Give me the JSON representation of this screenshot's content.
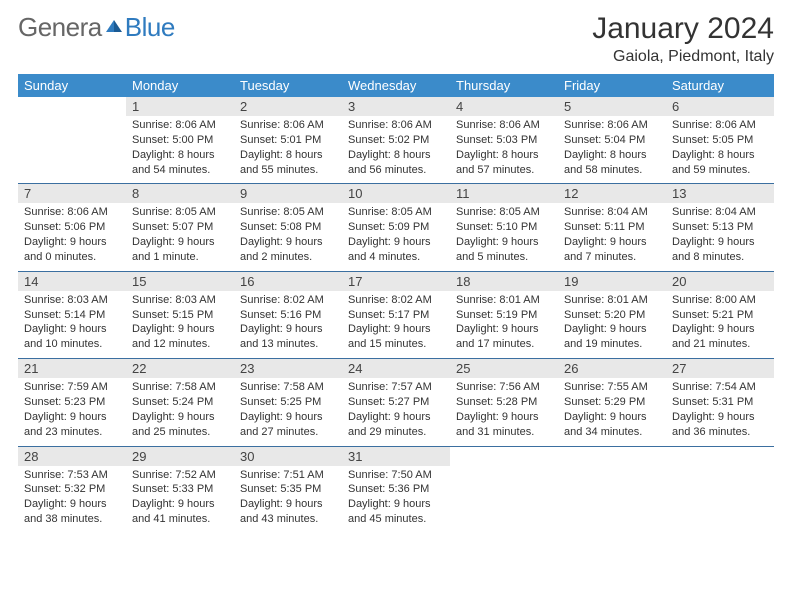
{
  "logo": {
    "text_a": "Genera",
    "text_b": "Blue"
  },
  "title": "January 2024",
  "location": "Gaiola, Piedmont, Italy",
  "day_headers": [
    "Sunday",
    "Monday",
    "Tuesday",
    "Wednesday",
    "Thursday",
    "Friday",
    "Saturday"
  ],
  "colors": {
    "header_bg": "#3b8bca",
    "header_fg": "#ffffff",
    "daynum_bg": "#e8e8e8",
    "rule": "#3b6fa0"
  },
  "weeks": [
    [
      {
        "n": "",
        "lines": []
      },
      {
        "n": "1",
        "lines": [
          "Sunrise: 8:06 AM",
          "Sunset: 5:00 PM",
          "Daylight: 8 hours",
          "and 54 minutes."
        ]
      },
      {
        "n": "2",
        "lines": [
          "Sunrise: 8:06 AM",
          "Sunset: 5:01 PM",
          "Daylight: 8 hours",
          "and 55 minutes."
        ]
      },
      {
        "n": "3",
        "lines": [
          "Sunrise: 8:06 AM",
          "Sunset: 5:02 PM",
          "Daylight: 8 hours",
          "and 56 minutes."
        ]
      },
      {
        "n": "4",
        "lines": [
          "Sunrise: 8:06 AM",
          "Sunset: 5:03 PM",
          "Daylight: 8 hours",
          "and 57 minutes."
        ]
      },
      {
        "n": "5",
        "lines": [
          "Sunrise: 8:06 AM",
          "Sunset: 5:04 PM",
          "Daylight: 8 hours",
          "and 58 minutes."
        ]
      },
      {
        "n": "6",
        "lines": [
          "Sunrise: 8:06 AM",
          "Sunset: 5:05 PM",
          "Daylight: 8 hours",
          "and 59 minutes."
        ]
      }
    ],
    [
      {
        "n": "7",
        "lines": [
          "Sunrise: 8:06 AM",
          "Sunset: 5:06 PM",
          "Daylight: 9 hours",
          "and 0 minutes."
        ]
      },
      {
        "n": "8",
        "lines": [
          "Sunrise: 8:05 AM",
          "Sunset: 5:07 PM",
          "Daylight: 9 hours",
          "and 1 minute."
        ]
      },
      {
        "n": "9",
        "lines": [
          "Sunrise: 8:05 AM",
          "Sunset: 5:08 PM",
          "Daylight: 9 hours",
          "and 2 minutes."
        ]
      },
      {
        "n": "10",
        "lines": [
          "Sunrise: 8:05 AM",
          "Sunset: 5:09 PM",
          "Daylight: 9 hours",
          "and 4 minutes."
        ]
      },
      {
        "n": "11",
        "lines": [
          "Sunrise: 8:05 AM",
          "Sunset: 5:10 PM",
          "Daylight: 9 hours",
          "and 5 minutes."
        ]
      },
      {
        "n": "12",
        "lines": [
          "Sunrise: 8:04 AM",
          "Sunset: 5:11 PM",
          "Daylight: 9 hours",
          "and 7 minutes."
        ]
      },
      {
        "n": "13",
        "lines": [
          "Sunrise: 8:04 AM",
          "Sunset: 5:13 PM",
          "Daylight: 9 hours",
          "and 8 minutes."
        ]
      }
    ],
    [
      {
        "n": "14",
        "lines": [
          "Sunrise: 8:03 AM",
          "Sunset: 5:14 PM",
          "Daylight: 9 hours",
          "and 10 minutes."
        ]
      },
      {
        "n": "15",
        "lines": [
          "Sunrise: 8:03 AM",
          "Sunset: 5:15 PM",
          "Daylight: 9 hours",
          "and 12 minutes."
        ]
      },
      {
        "n": "16",
        "lines": [
          "Sunrise: 8:02 AM",
          "Sunset: 5:16 PM",
          "Daylight: 9 hours",
          "and 13 minutes."
        ]
      },
      {
        "n": "17",
        "lines": [
          "Sunrise: 8:02 AM",
          "Sunset: 5:17 PM",
          "Daylight: 9 hours",
          "and 15 minutes."
        ]
      },
      {
        "n": "18",
        "lines": [
          "Sunrise: 8:01 AM",
          "Sunset: 5:19 PM",
          "Daylight: 9 hours",
          "and 17 minutes."
        ]
      },
      {
        "n": "19",
        "lines": [
          "Sunrise: 8:01 AM",
          "Sunset: 5:20 PM",
          "Daylight: 9 hours",
          "and 19 minutes."
        ]
      },
      {
        "n": "20",
        "lines": [
          "Sunrise: 8:00 AM",
          "Sunset: 5:21 PM",
          "Daylight: 9 hours",
          "and 21 minutes."
        ]
      }
    ],
    [
      {
        "n": "21",
        "lines": [
          "Sunrise: 7:59 AM",
          "Sunset: 5:23 PM",
          "Daylight: 9 hours",
          "and 23 minutes."
        ]
      },
      {
        "n": "22",
        "lines": [
          "Sunrise: 7:58 AM",
          "Sunset: 5:24 PM",
          "Daylight: 9 hours",
          "and 25 minutes."
        ]
      },
      {
        "n": "23",
        "lines": [
          "Sunrise: 7:58 AM",
          "Sunset: 5:25 PM",
          "Daylight: 9 hours",
          "and 27 minutes."
        ]
      },
      {
        "n": "24",
        "lines": [
          "Sunrise: 7:57 AM",
          "Sunset: 5:27 PM",
          "Daylight: 9 hours",
          "and 29 minutes."
        ]
      },
      {
        "n": "25",
        "lines": [
          "Sunrise: 7:56 AM",
          "Sunset: 5:28 PM",
          "Daylight: 9 hours",
          "and 31 minutes."
        ]
      },
      {
        "n": "26",
        "lines": [
          "Sunrise: 7:55 AM",
          "Sunset: 5:29 PM",
          "Daylight: 9 hours",
          "and 34 minutes."
        ]
      },
      {
        "n": "27",
        "lines": [
          "Sunrise: 7:54 AM",
          "Sunset: 5:31 PM",
          "Daylight: 9 hours",
          "and 36 minutes."
        ]
      }
    ],
    [
      {
        "n": "28",
        "lines": [
          "Sunrise: 7:53 AM",
          "Sunset: 5:32 PM",
          "Daylight: 9 hours",
          "and 38 minutes."
        ]
      },
      {
        "n": "29",
        "lines": [
          "Sunrise: 7:52 AM",
          "Sunset: 5:33 PM",
          "Daylight: 9 hours",
          "and 41 minutes."
        ]
      },
      {
        "n": "30",
        "lines": [
          "Sunrise: 7:51 AM",
          "Sunset: 5:35 PM",
          "Daylight: 9 hours",
          "and 43 minutes."
        ]
      },
      {
        "n": "31",
        "lines": [
          "Sunrise: 7:50 AM",
          "Sunset: 5:36 PM",
          "Daylight: 9 hours",
          "and 45 minutes."
        ]
      },
      {
        "n": "",
        "lines": []
      },
      {
        "n": "",
        "lines": []
      },
      {
        "n": "",
        "lines": []
      }
    ]
  ]
}
